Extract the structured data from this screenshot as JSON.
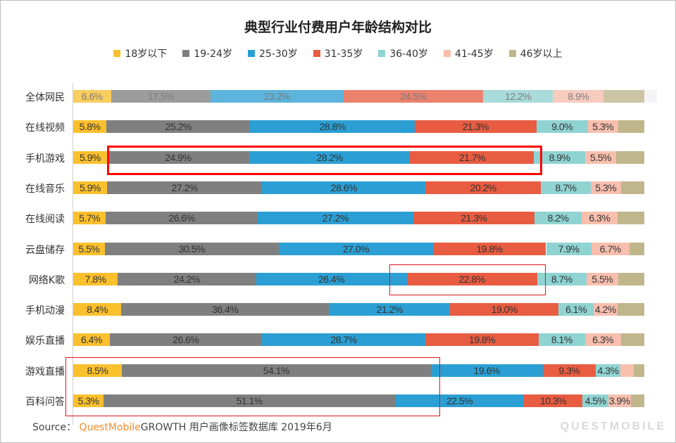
{
  "chart_data": {
    "type": "bar",
    "orientation": "horizontal-stacked-100",
    "title": "典型行业付费用户年龄结构对比",
    "legend_position": "top",
    "series_names": [
      "18岁以下",
      "19-24岁",
      "25-30岁",
      "31-35岁",
      "36-40岁",
      "41-45岁",
      "46岁以上"
    ],
    "colors": [
      "#fbc02d",
      "#7f7f7f",
      "#2b9fd4",
      "#e85c41",
      "#8fd3d2",
      "#f8bfae",
      "#bfb68b"
    ],
    "categories": [
      "全体网民",
      "在线视频",
      "手机游戏",
      "在线音乐",
      "在线阅读",
      "云盘储存",
      "网络K歌",
      "手机动漫",
      "娱乐直播",
      "游戏直播",
      "百科问答"
    ],
    "values": [
      [
        6.6,
        17.5,
        23.2,
        24.5,
        12.2,
        8.9,
        7.1
      ],
      [
        5.8,
        25.2,
        28.8,
        21.3,
        9.0,
        5.3,
        4.6
      ],
      [
        5.9,
        24.9,
        28.2,
        21.7,
        8.9,
        5.5,
        4.9
      ],
      [
        5.9,
        27.2,
        28.6,
        20.2,
        8.7,
        5.3,
        4.1
      ],
      [
        5.7,
        26.6,
        27.2,
        21.3,
        8.2,
        6.3,
        4.7
      ],
      [
        5.5,
        30.5,
        27.0,
        19.8,
        7.9,
        6.7,
        2.6
      ],
      [
        7.8,
        24.2,
        26.4,
        22.8,
        8.7,
        5.5,
        4.6
      ],
      [
        8.4,
        36.4,
        21.2,
        19.0,
        6.1,
        4.2,
        4.7
      ],
      [
        6.4,
        26.6,
        28.7,
        19.8,
        8.1,
        6.3,
        4.1
      ],
      [
        8.5,
        54.1,
        19.6,
        9.3,
        4.3,
        2.4,
        1.8
      ],
      [
        5.3,
        51.1,
        22.5,
        10.3,
        4.5,
        3.9,
        2.4
      ]
    ],
    "labels": [
      [
        "6.6%",
        "17.5%",
        "23.2%",
        "24.5%",
        "12.2%",
        "8.9%",
        ""
      ],
      [
        "5.8%",
        "25.2%",
        "28.8%",
        "21.3%",
        "9.0%",
        "5.3%",
        ""
      ],
      [
        "5.9%",
        "24.9%",
        "28.2%",
        "21.7%",
        "8.9%",
        "5.5%",
        ""
      ],
      [
        "5.9%",
        "27.2%",
        "28.6%",
        "20.2%",
        "8.7%",
        "5.3%",
        ""
      ],
      [
        "5.7%",
        "26.6%",
        "27.2%",
        "21.3%",
        "8.2%",
        "6.3%",
        ""
      ],
      [
        "5.5%",
        "30.5%",
        "27.0%",
        "19.8%",
        "7.9%",
        "6.7%",
        ""
      ],
      [
        "7.8%",
        "24.2%",
        "26.4%",
        "22.8%",
        "8.7%",
        "5.5%",
        ""
      ],
      [
        "8.4%",
        "36.4%",
        "21.2%",
        "19.0%",
        "6.1%",
        "4.2%",
        ""
      ],
      [
        "6.4%",
        "26.6%",
        "28.7%",
        "19.8%",
        "8.1%",
        "6.3%",
        ""
      ],
      [
        "8.5%",
        "54.1%",
        "19.6%",
        "9.3%",
        "4.3%",
        "",
        ""
      ],
      [
        "5.3%",
        "51.1%",
        "22.5%",
        "10.3%",
        "4.5%",
        "3.9%",
        ""
      ]
    ],
    "xlim": [
      0,
      100
    ]
  },
  "source": {
    "prefix": "Source：",
    "brand": "QuestMobile",
    "text": "GROWTH 用户画像标签数据库 2019年6月"
  },
  "watermark": "QUESTMOBILE"
}
